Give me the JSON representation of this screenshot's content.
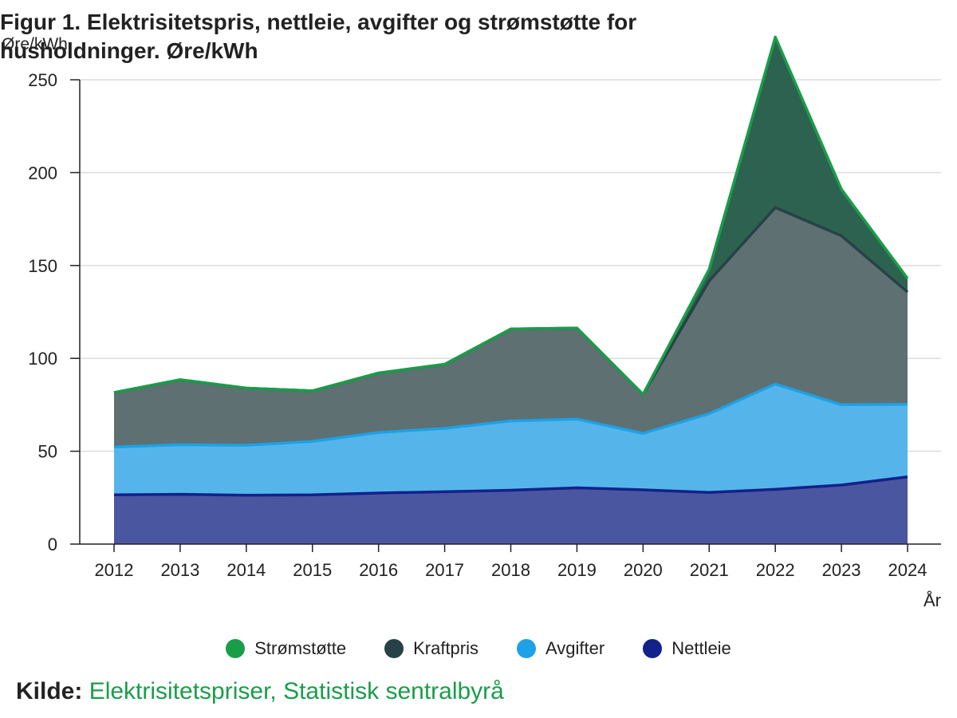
{
  "chart_data": {
    "type": "area",
    "stacked": true,
    "title": "Figur 1. Elektrisitetspris, nettleie, avgifter og strømstøtte for husholdninger. Øre/kWh",
    "ylabel": "Øre/kWh",
    "xlabel": "År",
    "ylim": [
      0,
      250
    ],
    "yticks": [
      0,
      50,
      100,
      150,
      200,
      250
    ],
    "grid": true,
    "legend_position": "bottom",
    "categories": [
      "2012",
      "2013",
      "2014",
      "2015",
      "2016",
      "2017",
      "2018",
      "2019",
      "2020",
      "2021",
      "2022",
      "2023",
      "2024"
    ],
    "series": [
      {
        "name": "Nettleie",
        "color": "#12228a",
        "fill": "#4b56a0",
        "values": [
          26.5,
          26.8,
          26.3,
          26.5,
          27.5,
          28.2,
          29.0,
          30.3,
          29.2,
          27.8,
          29.5,
          31.8,
          36.2
        ]
      },
      {
        "name": "Avgifter",
        "color": "#1ea1e6",
        "fill": "#55b5ea",
        "values": [
          25.8,
          26.7,
          26.9,
          28.8,
          32.6,
          34.1,
          37.3,
          37.0,
          30.4,
          42.4,
          56.7,
          43.2,
          39.0
        ]
      },
      {
        "name": "Kraftpris",
        "color": "#274247",
        "fill": "#5e7071",
        "values": [
          29.3,
          35.0,
          30.8,
          27.2,
          32.0,
          34.5,
          49.5,
          49.0,
          21.0,
          71.5,
          95.0,
          91.0,
          60.5
        ]
      },
      {
        "name": "Strømstøtte",
        "color": "#1a9d49",
        "fill": "#2e6250",
        "values": [
          0,
          0,
          0,
          0,
          0,
          0,
          0,
          0,
          0,
          6.3,
          91.8,
          25.0,
          7.3
        ]
      }
    ],
    "legend_order": [
      "Strømstøtte",
      "Kraftpris",
      "Avgifter",
      "Nettleie"
    ]
  },
  "source": {
    "label": "Kilde:",
    "text": "Elektrisitetspriser, Statistisk sentralbyrå"
  }
}
